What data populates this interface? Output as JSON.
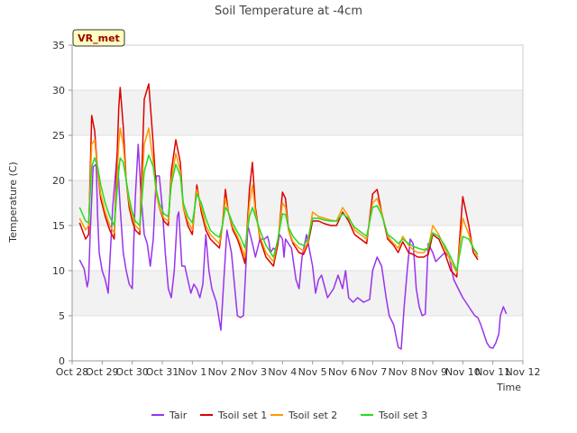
{
  "chart_data": {
    "type": "line",
    "title": "Soil Temperature at -4cm",
    "xlabel": "Time",
    "ylabel": "Temperature (C)",
    "station_label": "VR_met",
    "ylim": [
      0,
      35
    ],
    "yticks": [
      0,
      5,
      10,
      15,
      20,
      25,
      30,
      35
    ],
    "xlim": [
      0,
      15
    ],
    "xticks": [
      0,
      1,
      2,
      3,
      4,
      5,
      6,
      7,
      8,
      9,
      10,
      11,
      12,
      13,
      14,
      15
    ],
    "xtick_labels": [
      "Oct 28",
      "Oct 29",
      "Oct 30",
      "Oct 31",
      "Nov 1",
      "Nov 2",
      "Nov 3",
      "Nov 4",
      "Nov 5",
      "Nov 6",
      "Nov 7",
      "Nov 8",
      "Nov 9",
      "Nov 10",
      "Nov 11",
      "Nov 12"
    ],
    "x_units": "days since Oct 28",
    "grid": "horizontal bands",
    "legend_position": "bottom",
    "series": [
      {
        "name": "Tair",
        "color": "#9933ee",
        "x": [
          0.25,
          0.4,
          0.5,
          0.55,
          0.6,
          0.7,
          0.8,
          0.85,
          0.9,
          1.0,
          1.1,
          1.2,
          1.35,
          1.5,
          1.6,
          1.7,
          1.8,
          1.9,
          2.0,
          2.1,
          2.2,
          2.3,
          2.4,
          2.5,
          2.6,
          2.7,
          2.8,
          2.9,
          3.0,
          3.1,
          3.2,
          3.3,
          3.4,
          3.5,
          3.55,
          3.65,
          3.75,
          3.85,
          3.95,
          4.05,
          4.15,
          4.25,
          4.35,
          4.45,
          4.55,
          4.65,
          4.8,
          4.95,
          5.05,
          5.15,
          5.3,
          5.5,
          5.6,
          5.7,
          5.85,
          6.0,
          6.1,
          6.25,
          6.4,
          6.5,
          6.55,
          6.6,
          6.7,
          6.8,
          6.9,
          7.0,
          7.05,
          7.1,
          7.2,
          7.3,
          7.45,
          7.55,
          7.65,
          7.8,
          8.0,
          8.1,
          8.2,
          8.3,
          8.5,
          8.7,
          8.85,
          9.0,
          9.1,
          9.2,
          9.35,
          9.5,
          9.7,
          9.9,
          10.0,
          10.15,
          10.3,
          10.45,
          10.55,
          10.7,
          10.85,
          10.95,
          11.05,
          11.15,
          11.25,
          11.35,
          11.45,
          11.55,
          11.65,
          11.75,
          11.85,
          12.0,
          12.1,
          12.25,
          12.4,
          12.55,
          12.7,
          12.85,
          13.0,
          13.1,
          13.2,
          13.3,
          13.4,
          13.5,
          13.6,
          13.7,
          13.8,
          13.9,
          14.0,
          14.1,
          14.2,
          14.25,
          14.35,
          14.45
        ],
        "values": [
          11.2,
          10.2,
          8.2,
          9.0,
          14.0,
          21.5,
          21.8,
          16.0,
          12.0,
          10.0,
          9.0,
          7.5,
          17.0,
          23.0,
          17.0,
          12.0,
          10.0,
          8.5,
          8.0,
          18.0,
          24.0,
          18.0,
          14.0,
          13.0,
          10.5,
          13.5,
          20.5,
          20.5,
          17.0,
          12.0,
          8.0,
          7.0,
          10.0,
          16.0,
          16.5,
          10.5,
          10.5,
          9.0,
          7.5,
          8.5,
          8.0,
          7.0,
          8.5,
          14.0,
          10.0,
          8.0,
          6.5,
          3.4,
          9.0,
          14.5,
          12.0,
          5.0,
          4.8,
          5.0,
          15.0,
          13.0,
          11.5,
          13.5,
          13.5,
          13.8,
          13.2,
          12.0,
          12.5,
          12.2,
          14.0,
          13.5,
          11.5,
          13.5,
          13.0,
          12.5,
          9.0,
          8.0,
          11.5,
          14.0,
          10.5,
          7.5,
          9.0,
          9.5,
          7.0,
          8.0,
          9.5,
          8.0,
          10.0,
          7.0,
          6.5,
          7.0,
          6.5,
          6.8,
          10.0,
          11.5,
          10.5,
          7.0,
          5.0,
          4.0,
          1.5,
          1.3,
          6.0,
          10.0,
          13.5,
          13.0,
          8.0,
          6.0,
          5.0,
          5.2,
          13.0,
          12.0,
          11.0,
          11.5,
          12.0,
          11.5,
          9.0,
          8.0,
          7.0,
          6.5,
          6.0,
          5.5,
          5.0,
          4.8,
          4.0,
          3.0,
          2.0,
          1.5,
          1.4,
          2.0,
          3.0,
          5.0,
          6.0,
          5.2
        ],
        "x_note": "",
        "values_note": ""
      },
      {
        "name": "Tsoil set 1",
        "color": "#dd0000",
        "x": [
          0.25,
          0.45,
          0.55,
          0.65,
          0.75,
          0.85,
          0.95,
          1.1,
          1.25,
          1.4,
          1.55,
          1.6,
          1.7,
          1.8,
          1.9,
          2.0,
          2.1,
          2.25,
          2.4,
          2.55,
          2.7,
          2.8,
          2.9,
          3.05,
          3.2,
          3.3,
          3.45,
          3.6,
          3.7,
          3.85,
          4.0,
          4.15,
          4.3,
          4.45,
          4.6,
          4.75,
          4.9,
          5.0,
          5.1,
          5.2,
          5.35,
          5.5,
          5.6,
          5.75,
          5.9,
          6.0,
          6.1,
          6.25,
          6.45,
          6.7,
          6.85,
          7.0,
          7.1,
          7.2,
          7.35,
          7.55,
          7.7,
          7.85,
          8.0,
          8.2,
          8.4,
          8.6,
          8.8,
          9.0,
          9.2,
          9.4,
          9.6,
          9.8,
          10.0,
          10.15,
          10.3,
          10.5,
          10.7,
          10.85,
          11.0,
          11.2,
          11.35,
          11.5,
          11.7,
          11.85,
          12.0,
          12.2,
          12.4,
          12.6,
          12.8,
          13.0,
          13.2,
          13.35,
          13.5
        ],
        "values": [
          15.3,
          13.5,
          14.0,
          27.2,
          25.5,
          21.0,
          18.0,
          16.0,
          14.5,
          13.5,
          28.0,
          30.3,
          26.0,
          20.0,
          17.0,
          15.5,
          14.5,
          14.0,
          29.0,
          30.7,
          24.0,
          19.0,
          17.0,
          15.5,
          15.0,
          21.0,
          24.5,
          22.0,
          17.0,
          15.0,
          14.0,
          19.5,
          16.5,
          14.5,
          13.5,
          13.0,
          12.5,
          15.0,
          19.0,
          16.5,
          14.5,
          13.5,
          12.5,
          10.8,
          19.0,
          22.0,
          17.0,
          13.5,
          11.5,
          10.5,
          13.0,
          18.7,
          18.0,
          14.5,
          13.0,
          12.0,
          11.8,
          13.0,
          15.5,
          15.5,
          15.2,
          15.0,
          15.0,
          16.5,
          15.5,
          14.0,
          13.5,
          13.0,
          18.5,
          19.0,
          16.5,
          13.5,
          12.8,
          12.0,
          13.2,
          12.0,
          11.8,
          11.5,
          11.5,
          11.8,
          14.0,
          13.5,
          12.0,
          10.0,
          9.3,
          18.2,
          15.0,
          12.0,
          11.2
        ]
      },
      {
        "name": "Tsoil set 2",
        "color": "#ff9900",
        "x": [
          0.25,
          0.45,
          0.55,
          0.65,
          0.75,
          0.85,
          0.95,
          1.1,
          1.25,
          1.4,
          1.55,
          1.6,
          1.7,
          1.8,
          1.9,
          2.0,
          2.1,
          2.25,
          2.4,
          2.55,
          2.7,
          2.8,
          2.9,
          3.05,
          3.2,
          3.3,
          3.45,
          3.6,
          3.7,
          3.85,
          4.0,
          4.15,
          4.3,
          4.45,
          4.6,
          4.75,
          4.9,
          5.0,
          5.1,
          5.2,
          5.35,
          5.5,
          5.6,
          5.75,
          5.9,
          6.0,
          6.1,
          6.25,
          6.45,
          6.7,
          6.85,
          7.0,
          7.1,
          7.2,
          7.35,
          7.55,
          7.7,
          7.85,
          8.0,
          8.2,
          8.4,
          8.6,
          8.8,
          9.0,
          9.2,
          9.4,
          9.6,
          9.8,
          10.0,
          10.15,
          10.3,
          10.5,
          10.7,
          10.85,
          11.0,
          11.2,
          11.35,
          11.5,
          11.7,
          11.85,
          12.0,
          12.2,
          12.4,
          12.6,
          12.8,
          13.0,
          13.2,
          13.35,
          13.5
        ],
        "values": [
          15.8,
          14.5,
          15.0,
          24.0,
          24.5,
          21.0,
          18.5,
          16.5,
          15.0,
          14.2,
          24.0,
          25.8,
          24.0,
          20.0,
          17.5,
          16.0,
          15.0,
          14.5,
          24.0,
          25.8,
          22.0,
          18.5,
          17.0,
          15.8,
          15.5,
          20.0,
          23.0,
          21.0,
          17.0,
          15.5,
          14.5,
          19.0,
          17.0,
          15.0,
          14.0,
          13.5,
          13.0,
          15.0,
          18.0,
          16.5,
          14.8,
          13.8,
          13.0,
          11.5,
          17.5,
          19.5,
          16.5,
          13.8,
          12.0,
          11.0,
          13.5,
          17.5,
          17.0,
          14.5,
          13.2,
          12.5,
          12.2,
          13.2,
          16.5,
          16.0,
          15.8,
          15.6,
          15.5,
          17.0,
          16.0,
          14.5,
          14.0,
          13.5,
          17.5,
          18.0,
          16.5,
          13.8,
          13.0,
          12.5,
          13.8,
          12.8,
          12.3,
          12.0,
          12.0,
          12.5,
          15.0,
          14.0,
          12.5,
          11.0,
          9.8,
          15.8,
          14.0,
          12.5,
          11.5
        ]
      },
      {
        "name": "Tsoil set 3",
        "color": "#22dd22",
        "x": [
          0.25,
          0.45,
          0.55,
          0.65,
          0.75,
          0.85,
          0.95,
          1.1,
          1.25,
          1.4,
          1.55,
          1.6,
          1.7,
          1.8,
          1.9,
          2.0,
          2.1,
          2.25,
          2.4,
          2.55,
          2.7,
          2.8,
          2.9,
          3.05,
          3.2,
          3.3,
          3.45,
          3.6,
          3.7,
          3.85,
          4.0,
          4.15,
          4.3,
          4.45,
          4.6,
          4.75,
          4.9,
          5.0,
          5.1,
          5.2,
          5.35,
          5.5,
          5.6,
          5.75,
          5.9,
          6.0,
          6.1,
          6.25,
          6.45,
          6.7,
          6.85,
          7.0,
          7.1,
          7.2,
          7.35,
          7.55,
          7.7,
          7.85,
          8.0,
          8.2,
          8.4,
          8.6,
          8.8,
          9.0,
          9.2,
          9.4,
          9.6,
          9.8,
          10.0,
          10.15,
          10.3,
          10.5,
          10.7,
          10.85,
          11.0,
          11.2,
          11.35,
          11.5,
          11.7,
          11.85,
          12.0,
          12.2,
          12.4,
          12.6,
          12.8,
          13.0,
          13.2,
          13.35,
          13.5
        ],
        "values": [
          17.0,
          15.5,
          15.3,
          21.5,
          22.5,
          21.5,
          19.5,
          17.5,
          16.0,
          15.0,
          21.0,
          22.5,
          22.0,
          20.0,
          18.0,
          16.5,
          15.5,
          15.0,
          21.0,
          22.8,
          21.5,
          19.0,
          17.5,
          16.3,
          16.0,
          19.5,
          21.8,
          20.5,
          17.5,
          16.0,
          15.3,
          18.5,
          17.5,
          15.8,
          14.5,
          14.0,
          13.7,
          15.0,
          17.0,
          16.5,
          15.2,
          14.3,
          13.7,
          12.5,
          16.0,
          17.0,
          16.0,
          14.5,
          12.8,
          11.5,
          13.5,
          16.3,
          16.2,
          14.8,
          13.8,
          13.0,
          12.8,
          13.5,
          15.8,
          15.8,
          15.6,
          15.5,
          15.5,
          16.3,
          15.8,
          14.8,
          14.3,
          13.8,
          17.0,
          17.2,
          16.2,
          14.0,
          13.5,
          13.0,
          13.5,
          13.0,
          12.7,
          12.5,
          12.3,
          12.5,
          14.2,
          13.8,
          12.8,
          11.5,
          10.0,
          13.8,
          13.5,
          12.5,
          11.8
        ]
      }
    ]
  }
}
